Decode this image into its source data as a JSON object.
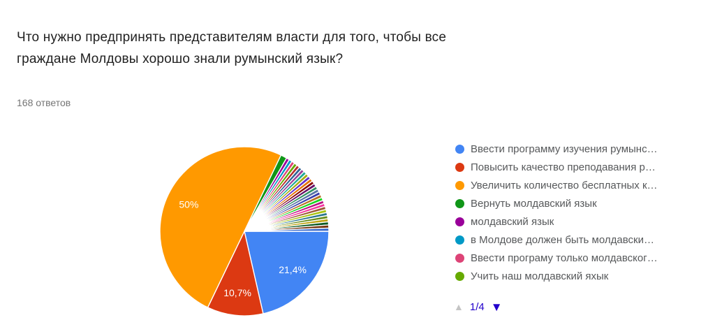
{
  "question": {
    "title_lines": [
      "Что нужно предпринять представителям власти для того, чтобы все",
      "граждане Молдовы хорошо знали румынский язык?"
    ],
    "responses_count": "168 ответов"
  },
  "chart_data": {
    "type": "pie",
    "title": "Что нужно предпринять представителям власти для того, чтобы все граждане Молдовы хорошо знали румынский язык?",
    "total_responses": 168,
    "start_angle_deg": 90,
    "direction": "clockwise",
    "slices": [
      {
        "label": "Ввести программу изучения румынс…",
        "value": 36,
        "percent_label": "21,4%",
        "color": "#4285F4"
      },
      {
        "label": "Повысить качество преподавания р…",
        "value": 18,
        "percent_label": "10,7%",
        "color": "#DC3912"
      },
      {
        "label": "Увеличить количество бесплатных к…",
        "value": 84,
        "percent_label": "50%",
        "color": "#FF9900"
      },
      {
        "label": "Вернуть молдавский язык",
        "value": 2,
        "color": "#109618"
      },
      {
        "label": "молдавский язык",
        "value": 1,
        "color": "#990099"
      },
      {
        "label": "в Молдове должен быть молдавски…",
        "value": 1,
        "color": "#0099C6"
      },
      {
        "label": "Ввести програму только молдавског…",
        "value": 1,
        "color": "#DD4477"
      },
      {
        "label": "Учить наш молдавский яхык",
        "value": 1,
        "color": "#66AA00"
      },
      {
        "value": 1,
        "color": "#B82E2E"
      },
      {
        "value": 1,
        "color": "#316395"
      },
      {
        "value": 1,
        "color": "#994499"
      },
      {
        "value": 1,
        "color": "#22AA99"
      },
      {
        "value": 1,
        "color": "#AAAA11"
      },
      {
        "value": 1,
        "color": "#6633CC"
      },
      {
        "value": 1,
        "color": "#E67300"
      },
      {
        "value": 1,
        "color": "#8B0707"
      },
      {
        "value": 1,
        "color": "#651067"
      },
      {
        "value": 1,
        "color": "#329262"
      },
      {
        "value": 1,
        "color": "#5574A6"
      },
      {
        "value": 1,
        "color": "#3B3EAC"
      },
      {
        "value": 1,
        "color": "#B77322"
      },
      {
        "value": 1,
        "color": "#16D620"
      },
      {
        "value": 1,
        "color": "#B91383"
      },
      {
        "value": 1,
        "color": "#F4359E"
      },
      {
        "value": 1,
        "color": "#9C5935"
      },
      {
        "value": 1,
        "color": "#A9C413"
      },
      {
        "value": 1,
        "color": "#2A778D"
      },
      {
        "value": 1,
        "color": "#668D1C"
      },
      {
        "value": 1,
        "color": "#BEA413"
      },
      {
        "value": 1,
        "color": "#0C5922"
      },
      {
        "value": 1,
        "color": "#743411"
      },
      {
        "value": 1,
        "color": "#3366CC"
      }
    ],
    "legend": {
      "position": "right",
      "visible_items": 8
    },
    "pagination": {
      "current": "1/4",
      "prev_glyph": "▲",
      "next_glyph": "▼",
      "prev_enabled": false,
      "next_enabled": true,
      "active_color": "#2200cc",
      "disabled_color": "#c4c4c4"
    }
  }
}
